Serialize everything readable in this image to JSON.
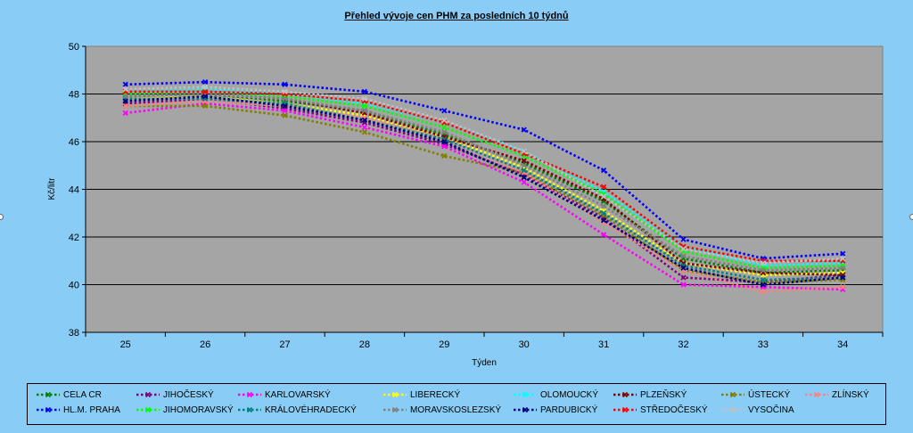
{
  "chart_data": {
    "type": "line",
    "title": "Přehled vývoje cen PHM za posledních 10 týdnů",
    "xlabel": "Týden",
    "ylabel": "Kč/litr",
    "categories": [
      "25",
      "26",
      "27",
      "28",
      "29",
      "30",
      "31",
      "32",
      "33",
      "34"
    ],
    "ylim": [
      38,
      50
    ],
    "yticks": [
      "38",
      "40",
      "42",
      "44",
      "46",
      "48",
      "50"
    ],
    "grid": true,
    "legend_position": "bottom",
    "series": [
      {
        "name": "CELA CR",
        "color": "#008000",
        "values": [
          47.9,
          47.9,
          47.7,
          47.3,
          46.3,
          45.1,
          43.5,
          41.1,
          40.5,
          40.6
        ]
      },
      {
        "name": "JIHOČESKÝ",
        "color": "#800080",
        "values": [
          47.6,
          47.8,
          47.4,
          46.8,
          45.9,
          44.6,
          42.8,
          40.3,
          40.1,
          40.4
        ]
      },
      {
        "name": "KARLOVARSKÝ",
        "color": "#ff00ff",
        "values": [
          47.2,
          47.6,
          47.3,
          46.6,
          45.8,
          44.3,
          42.1,
          40.0,
          39.9,
          39.8
        ]
      },
      {
        "name": "LIBERECKÝ",
        "color": "#ffff00",
        "values": [
          47.8,
          47.9,
          47.6,
          47.1,
          46.2,
          44.9,
          43.1,
          40.9,
          40.4,
          40.5
        ]
      },
      {
        "name": "OLOMOUCKÝ",
        "color": "#00ffff",
        "values": [
          48.1,
          48.2,
          48.0,
          47.6,
          46.8,
          45.6,
          43.9,
          41.6,
          40.8,
          40.9
        ]
      },
      {
        "name": "PLZEŇSKÝ",
        "color": "#800000",
        "values": [
          48.0,
          48.0,
          47.8,
          47.2,
          46.2,
          45.2,
          43.6,
          40.9,
          40.5,
          40.4
        ]
      },
      {
        "name": "ÚSTECKÝ",
        "color": "#808000",
        "values": [
          47.5,
          47.5,
          47.1,
          46.4,
          45.4,
          44.7,
          42.9,
          40.6,
          40.1,
          40.2
        ]
      },
      {
        "name": "ZLÍNSKÝ",
        "color": "#ff8080",
        "values": [
          47.5,
          47.7,
          47.5,
          47.0,
          46.1,
          44.7,
          42.6,
          40.6,
          39.7,
          39.9
        ]
      },
      {
        "name": "HL.M. PRAHA",
        "color": "#0000ff",
        "values": [
          48.4,
          48.5,
          48.4,
          48.1,
          47.3,
          46.5,
          44.8,
          41.9,
          41.1,
          41.3
        ]
      },
      {
        "name": "JIHOMORAVSKÝ",
        "color": "#00ff00",
        "values": [
          48.0,
          48.1,
          47.9,
          47.5,
          46.6,
          45.4,
          43.8,
          41.4,
          40.7,
          40.8
        ]
      },
      {
        "name": "KRÁLOVÉHRADECKÝ",
        "color": "#008080",
        "values": [
          47.8,
          47.8,
          47.6,
          46.9,
          46.1,
          44.8,
          43.0,
          40.8,
          40.2,
          40.3
        ]
      },
      {
        "name": "MORAVSKOSLEZSKÝ",
        "color": "#808080",
        "values": [
          47.9,
          48.0,
          47.8,
          47.3,
          46.4,
          45.0,
          43.3,
          41.2,
          40.6,
          40.7
        ]
      },
      {
        "name": "PARDUBICKÝ",
        "color": "#000080",
        "values": [
          47.7,
          47.9,
          47.5,
          46.9,
          46.0,
          44.5,
          42.7,
          40.7,
          40.0,
          40.3
        ]
      },
      {
        "name": "STŘEDOČESKÝ",
        "color": "#ff0000",
        "values": [
          48.1,
          48.1,
          48.0,
          47.7,
          46.8,
          45.5,
          44.1,
          41.6,
          41.0,
          41.0
        ]
      },
      {
        "name": "VYSOČINA",
        "color": "#c0c0c0",
        "values": [
          48.2,
          48.3,
          48.1,
          47.8,
          46.9,
          45.6,
          43.7,
          41.5,
          40.9,
          41.1
        ]
      }
    ]
  }
}
